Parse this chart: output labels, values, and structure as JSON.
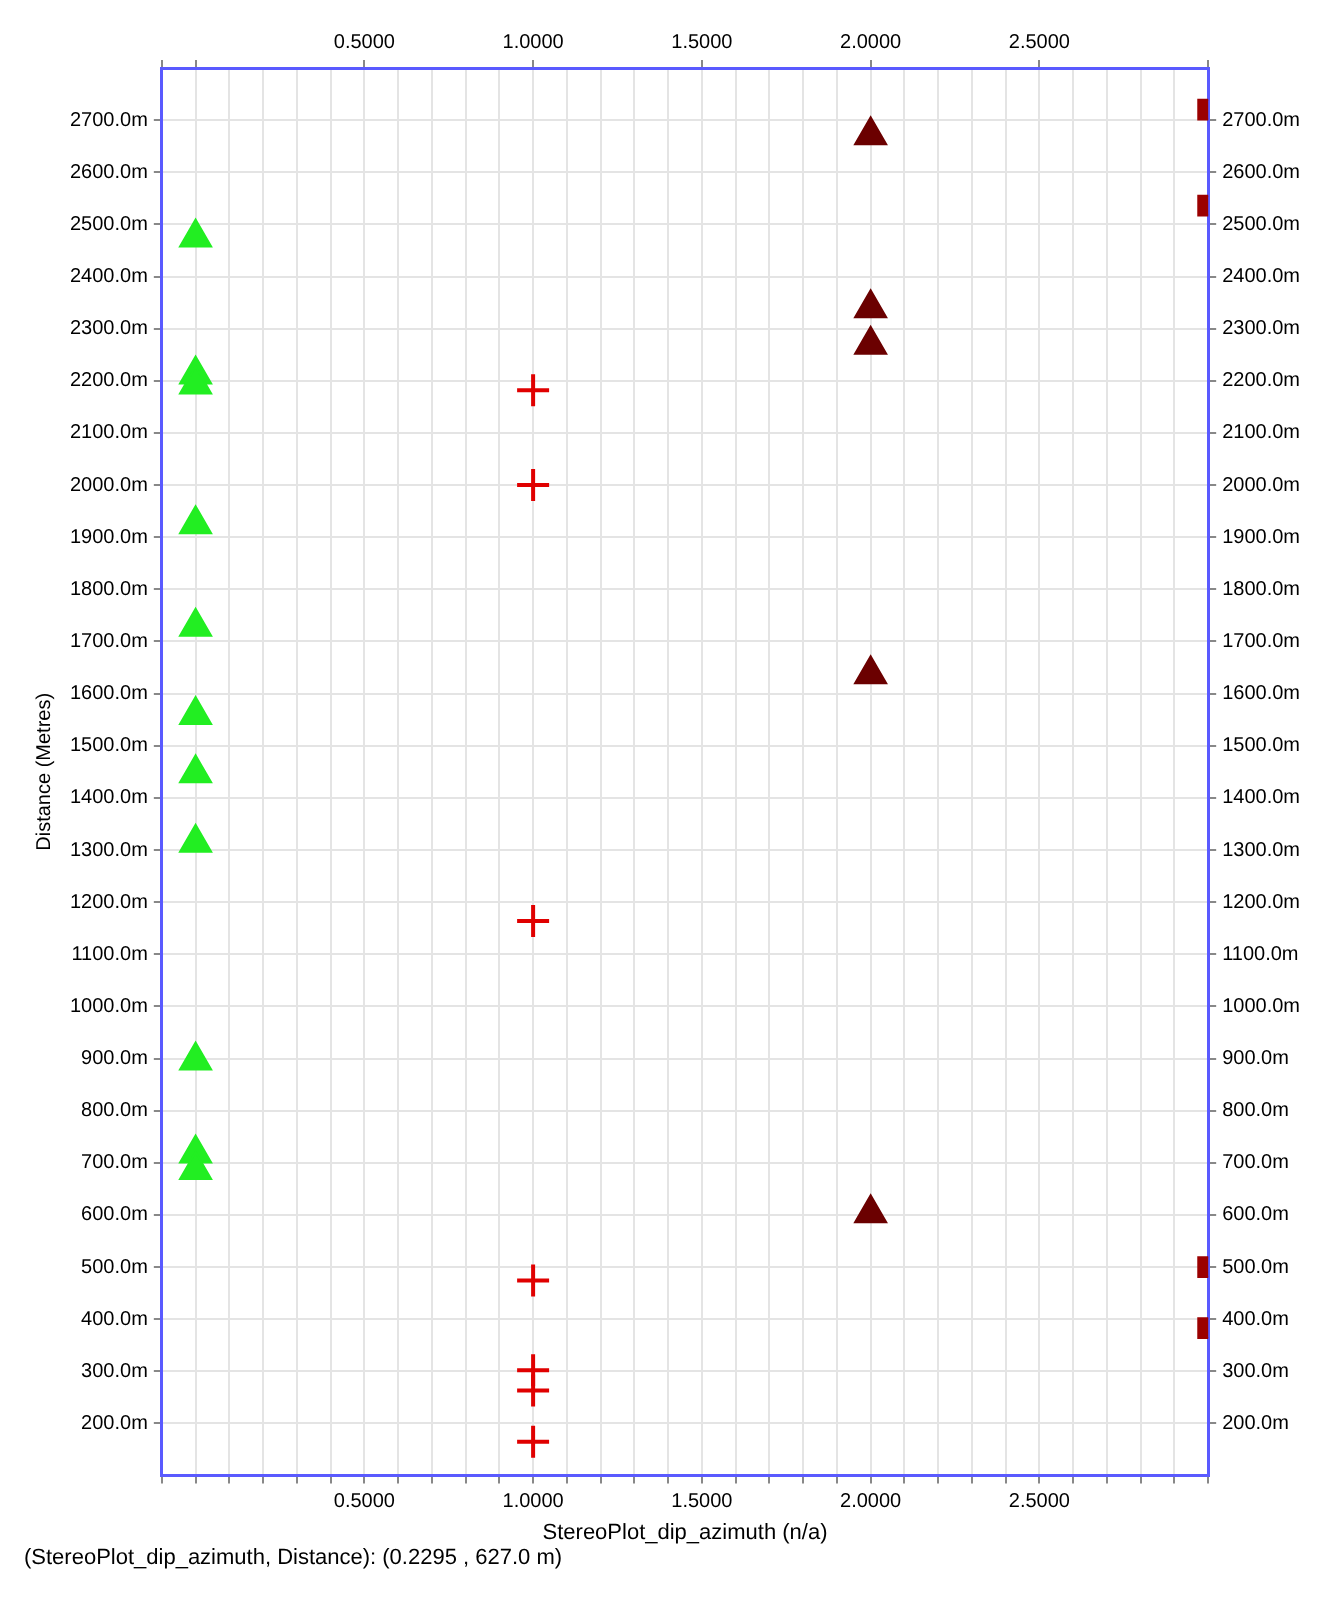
{
  "chart_data": {
    "type": "scatter",
    "xlabel": "StereoPlot_dip_azimuth (n/a)",
    "ylabel": "Distance (Metres)",
    "annotations": [
      "(StereoPlot_dip_azimuth, Distance): (0.2295 , 627.0 m)"
    ],
    "xlim": [
      -0.1,
      3.0
    ],
    "x2lim": [
      -0.1,
      3.0
    ],
    "ylim": [
      100,
      2800
    ],
    "y2lim": [
      100,
      2800
    ],
    "xticks": [
      {
        "value": -0.1,
        "label": null
      },
      {
        "value": 0,
        "label": null
      },
      {
        "value": 0.1,
        "label": null
      },
      {
        "value": 0.2,
        "label": null
      },
      {
        "value": 0.3,
        "label": null
      },
      {
        "value": 0.4,
        "label": null
      },
      {
        "value": 0.5,
        "label": "0.5000"
      },
      {
        "value": 0.6,
        "label": null
      },
      {
        "value": 0.7,
        "label": null
      },
      {
        "value": 0.8,
        "label": null
      },
      {
        "value": 0.9,
        "label": null
      },
      {
        "value": 1.0,
        "label": "1.0000"
      },
      {
        "value": 1.1,
        "label": null
      },
      {
        "value": 1.2,
        "label": null
      },
      {
        "value": 1.3,
        "label": null
      },
      {
        "value": 1.4,
        "label": null
      },
      {
        "value": 1.5,
        "label": "1.5000"
      },
      {
        "value": 1.6,
        "label": null
      },
      {
        "value": 1.7,
        "label": null
      },
      {
        "value": 1.8,
        "label": null
      },
      {
        "value": 1.9,
        "label": null
      },
      {
        "value": 2.0,
        "label": "2.0000"
      },
      {
        "value": 2.1,
        "label": null
      },
      {
        "value": 2.2,
        "label": null
      },
      {
        "value": 2.3,
        "label": null
      },
      {
        "value": 2.4,
        "label": null
      },
      {
        "value": 2.5,
        "label": "2.5000"
      },
      {
        "value": 2.6,
        "label": null
      },
      {
        "value": 2.7,
        "label": null
      },
      {
        "value": 2.8,
        "label": null
      },
      {
        "value": 2.9,
        "label": null
      },
      {
        "value": 3.0,
        "label": null
      }
    ],
    "x2ticks": [
      {
        "value": -0.1,
        "label": null
      },
      {
        "value": 0,
        "label": null
      },
      {
        "value": 0.5,
        "label": "0.5000"
      },
      {
        "value": 1.0,
        "label": "1.0000"
      },
      {
        "value": 1.5,
        "label": "1.5000"
      },
      {
        "value": 2.0,
        "label": "2.0000"
      },
      {
        "value": 2.5,
        "label": "2.5000"
      },
      {
        "value": 3.0,
        "label": null
      }
    ],
    "yticks": [
      {
        "value": 200,
        "label": "200.0m"
      },
      {
        "value": 300,
        "label": "300.0m"
      },
      {
        "value": 400,
        "label": "400.0m"
      },
      {
        "value": 500,
        "label": "500.0m"
      },
      {
        "value": 600,
        "label": "600.0m"
      },
      {
        "value": 700,
        "label": "700.0m"
      },
      {
        "value": 800,
        "label": "800.0m"
      },
      {
        "value": 900,
        "label": "900.0m"
      },
      {
        "value": 1000,
        "label": "1000.0m"
      },
      {
        "value": 1100,
        "label": "1100.0m"
      },
      {
        "value": 1200,
        "label": "1200.0m"
      },
      {
        "value": 1300,
        "label": "1300.0m"
      },
      {
        "value": 1400,
        "label": "1400.0m"
      },
      {
        "value": 1500,
        "label": "1500.0m"
      },
      {
        "value": 1600,
        "label": "1600.0m"
      },
      {
        "value": 1700,
        "label": "1700.0m"
      },
      {
        "value": 1800,
        "label": "1800.0m"
      },
      {
        "value": 1900,
        "label": "1900.0m"
      },
      {
        "value": 2000,
        "label": "2000.0m"
      },
      {
        "value": 2100,
        "label": "2100.0m"
      },
      {
        "value": 2200,
        "label": "2200.0m"
      },
      {
        "value": 2300,
        "label": "2300.0m"
      },
      {
        "value": 2400,
        "label": "2400.0m"
      },
      {
        "value": 2500,
        "label": "2500.0m"
      },
      {
        "value": 2600,
        "label": "2600.0m"
      },
      {
        "value": 2700,
        "label": "2700.0m"
      }
    ],
    "y2ticks": [
      {
        "value": 200,
        "label": "200.0m"
      },
      {
        "value": 300,
        "label": "300.0m"
      },
      {
        "value": 400,
        "label": "400.0m"
      },
      {
        "value": 500,
        "label": "500.0m"
      },
      {
        "value": 600,
        "label": "600.0m"
      },
      {
        "value": 700,
        "label": "700.0m"
      },
      {
        "value": 800,
        "label": "800.0m"
      },
      {
        "value": 900,
        "label": "900.0m"
      },
      {
        "value": 1000,
        "label": "1000.0m"
      },
      {
        "value": 1100,
        "label": "1100.0m"
      },
      {
        "value": 1200,
        "label": "1200.0m"
      },
      {
        "value": 1300,
        "label": "1300.0m"
      },
      {
        "value": 1400,
        "label": "1400.0m"
      },
      {
        "value": 1500,
        "label": "1500.0m"
      },
      {
        "value": 1600,
        "label": "1600.0m"
      },
      {
        "value": 1700,
        "label": "1700.0m"
      },
      {
        "value": 1800,
        "label": "1800.0m"
      },
      {
        "value": 1900,
        "label": "1900.0m"
      },
      {
        "value": 2000,
        "label": "2000.0m"
      },
      {
        "value": 2100,
        "label": "2100.0m"
      },
      {
        "value": 2200,
        "label": "2200.0m"
      },
      {
        "value": 2300,
        "label": "2300.0m"
      },
      {
        "value": 2400,
        "label": "2400.0m"
      },
      {
        "value": 2500,
        "label": "2500.0m"
      },
      {
        "value": 2600,
        "label": "2600.0m"
      },
      {
        "value": 2700,
        "label": "2700.0m"
      }
    ],
    "grid": true,
    "legend": false,
    "series": [
      {
        "color": "#22ee22",
        "marker": "triangle",
        "x": [
          0,
          0,
          0,
          0,
          0,
          0,
          0,
          0,
          0,
          0,
          0
        ],
        "values": [
          2475,
          2212,
          2193,
          1925,
          1728,
          1559,
          1447,
          1314,
          896,
          718,
          686
        ]
      },
      {
        "color": "#e00000",
        "marker": "cross",
        "x": [
          1,
          1,
          1,
          1,
          1,
          1,
          1
        ],
        "values": [
          2182,
          2000,
          1164,
          474,
          302,
          263,
          165
        ]
      },
      {
        "color": "#6b0000",
        "marker": "triangle",
        "x": [
          2,
          2,
          2,
          2,
          2
        ],
        "values": [
          2671,
          2339,
          2269,
          1637,
          603
        ]
      },
      {
        "color": "#9b0000",
        "marker": "square",
        "x": [
          3,
          3,
          3,
          3
        ],
        "values": [
          2720,
          2536,
          500,
          383
        ]
      }
    ]
  }
}
